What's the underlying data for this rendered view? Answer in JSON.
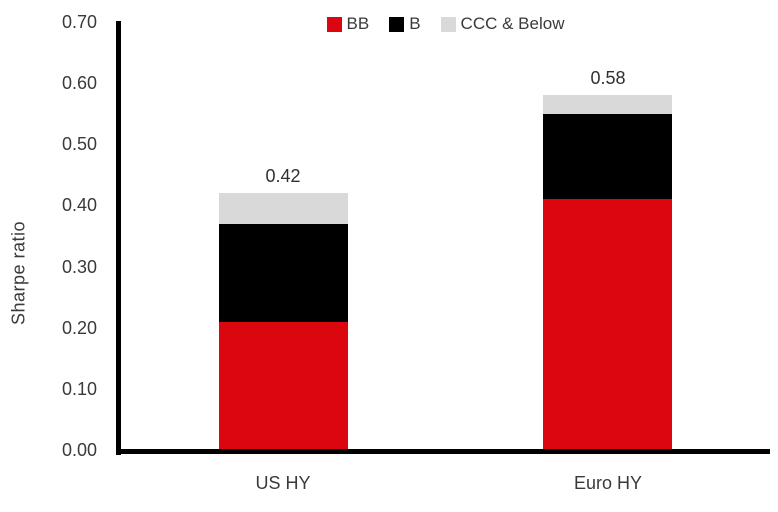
{
  "chart_data": {
    "type": "bar",
    "stacked": true,
    "title": "",
    "ylabel": "Sharpe ratio",
    "xlabel": "",
    "categories": [
      "US HY",
      "Euro HY"
    ],
    "series": [
      {
        "name": "BB",
        "color": "#dc060f",
        "values": [
          0.21,
          0.41
        ]
      },
      {
        "name": "B",
        "color": "#000000",
        "values": [
          0.16,
          0.14
        ]
      },
      {
        "name": "CCC & Below",
        "color": "#d9d9d9",
        "values": [
          0.05,
          0.03
        ]
      }
    ],
    "total_labels": [
      "0.42",
      "0.58"
    ],
    "yticks": [
      "0.00",
      "0.10",
      "0.20",
      "0.30",
      "0.40",
      "0.50",
      "0.60",
      "0.70"
    ],
    "ylim": [
      0,
      0.7
    ],
    "legend_position": "top",
    "grid": false,
    "axis_color": "#000000",
    "text_color": "#3a3a3a"
  }
}
